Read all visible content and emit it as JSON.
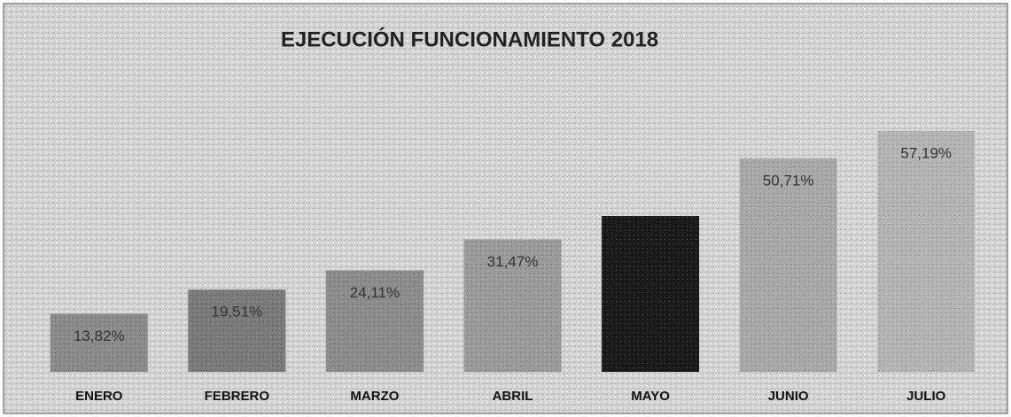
{
  "chart_data": {
    "type": "bar",
    "title": "EJECUCIÓN FUNCIONAMIENTO 2018",
    "categories": [
      "ENERO",
      "FEBRERO",
      "MARZO",
      "ABRIL",
      "MAYO",
      "JUNIO",
      "JULIO"
    ],
    "values": [
      13.82,
      19.51,
      24.11,
      31.47,
      37,
      50.71,
      57.19
    ],
    "value_labels": [
      "13,82%",
      "19,51%",
      "24,11%",
      "31,47%",
      null,
      "50,71%",
      "57,19%"
    ],
    "colors": [
      "#8a8a8a",
      "#7a7a7a",
      "#8c8c8c",
      "#9a9a9a",
      "#1a1a1a",
      "#a8a8a8",
      "#b4b4b4"
    ]
  }
}
